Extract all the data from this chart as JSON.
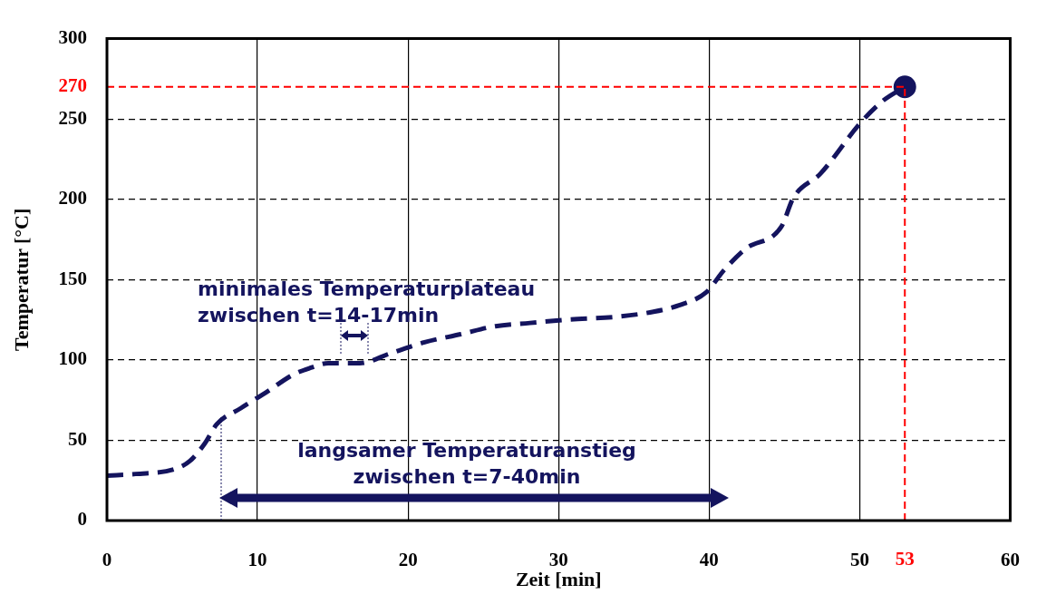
{
  "chart_data": {
    "type": "line",
    "xlabel": "Zeit [min]",
    "ylabel": "Temperatur [°C]",
    "x": [
      0,
      1.9,
      4.5,
      5.5,
      6.5,
      7.3,
      8.9,
      10.6,
      12.4,
      13.5,
      14.7,
      16.8,
      18.8,
      21.1,
      23.5,
      25.8,
      28.1,
      30.5,
      34,
      36.3,
      38,
      39.8,
      41,
      42.4,
      44.8,
      45.6,
      47.4,
      50,
      51.5,
      53
    ],
    "series": [
      {
        "color": "#14145e",
        "values": [
          28,
          29,
          32,
          37,
          48,
          60,
          70,
          80,
          91,
          95,
          98,
          98,
          104,
          111,
          116,
          121,
          123,
          125,
          127,
          130,
          134,
          142,
          156,
          169,
          183,
          201,
          216,
          247,
          261,
          270
        ]
      },
      {
        "type": "scatter",
        "color": "#14145e",
        "marker": "circle",
        "x": [
          53
        ],
        "values": [
          270
        ]
      }
    ],
    "xlim": [
      0,
      60
    ],
    "xticks": [
      0,
      10,
      20,
      30,
      40,
      50,
      60
    ],
    "ylim": [
      0,
      300
    ],
    "yticks": [
      0,
      50,
      100,
      150,
      200,
      250,
      300
    ],
    "grid": true,
    "line_style": "dashed",
    "ref_lines": [
      {
        "axis": "x",
        "value": 53,
        "label": "53",
        "color": "#ff0000",
        "line_style": "dashed"
      },
      {
        "axis": "y",
        "value": 270,
        "label": "270",
        "color": "#ff0000",
        "line_style": "dashed"
      }
    ],
    "annotations": [
      "minimales Temperaturplateau\nzwischen t=14-17min",
      "langsamer Temperaturanstieg\nzwischen t=7-40min"
    ]
  }
}
